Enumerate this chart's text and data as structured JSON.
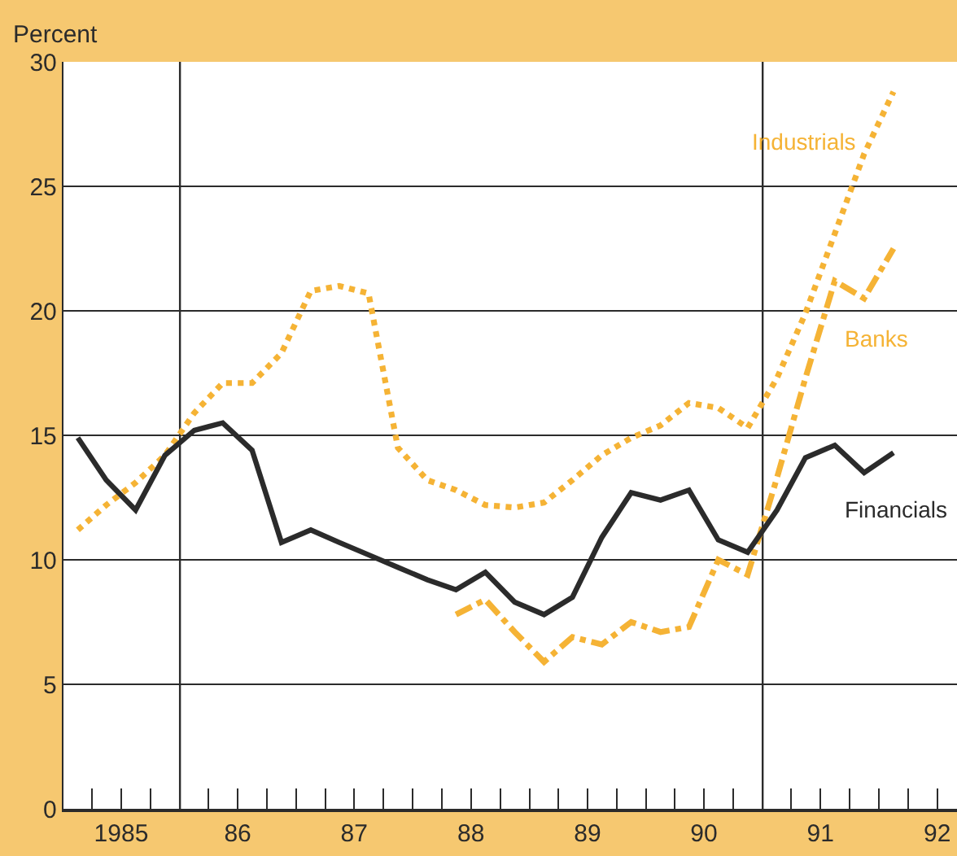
{
  "chart_data": {
    "type": "line",
    "ylabel": "Percent",
    "xlim": [
      "1985-01-01",
      "1992-09-01"
    ],
    "xticks": [
      {
        "value": "1985-01-01",
        "label": null
      },
      {
        "value": "1985-04-01",
        "label": null
      },
      {
        "value": "1985-07-01",
        "label": "1985"
      },
      {
        "value": "1985-10-01",
        "label": null
      },
      {
        "value": "1986-01-01",
        "label": null
      },
      {
        "value": "1986-04-01",
        "label": null
      },
      {
        "value": "1986-07-01",
        "label": "86"
      },
      {
        "value": "1986-10-01",
        "label": null
      },
      {
        "value": "1987-01-01",
        "label": null
      },
      {
        "value": "1987-04-01",
        "label": null
      },
      {
        "value": "1987-07-01",
        "label": "87"
      },
      {
        "value": "1987-10-01",
        "label": null
      },
      {
        "value": "1988-01-01",
        "label": null
      },
      {
        "value": "1988-04-01",
        "label": null
      },
      {
        "value": "1988-07-01",
        "label": "88"
      },
      {
        "value": "1988-10-01",
        "label": null
      },
      {
        "value": "1989-01-01",
        "label": null
      },
      {
        "value": "1989-04-01",
        "label": null
      },
      {
        "value": "1989-07-01",
        "label": "89"
      },
      {
        "value": "1989-10-01",
        "label": null
      },
      {
        "value": "1990-01-01",
        "label": null
      },
      {
        "value": "1990-04-01",
        "label": null
      },
      {
        "value": "1990-07-01",
        "label": "90"
      },
      {
        "value": "1990-10-01",
        "label": null
      },
      {
        "value": "1991-01-01",
        "label": null
      },
      {
        "value": "1991-04-01",
        "label": null
      },
      {
        "value": "1991-07-01",
        "label": "91"
      },
      {
        "value": "1991-10-01",
        "label": null
      },
      {
        "value": "1992-01-01",
        "label": null
      },
      {
        "value": "1992-04-01",
        "label": null
      },
      {
        "value": "1992-07-01",
        "label": "92"
      }
    ],
    "ylim": [
      0,
      30
    ],
    "yticks": [
      0,
      5,
      10,
      15,
      20,
      25,
      30
    ],
    "grid": "y",
    "legend": false,
    "marker": "none",
    "ref_lines": [
      {
        "axis": "x",
        "value": "1986-01-01",
        "color": "#2b2b2b"
      },
      {
        "axis": "x",
        "value": "1991-01-01",
        "color": "#2b2b2b"
      }
    ],
    "series": [
      {
        "name": "Industrials",
        "color": "#f5b335",
        "line_style": "dotted",
        "x": [
          "1985-02-15",
          "1985-05-15",
          "1985-08-15",
          "1985-11-15",
          "1986-02-15",
          "1986-05-15",
          "1986-08-15",
          "1986-11-15",
          "1987-02-15",
          "1987-05-15",
          "1987-08-15",
          "1987-11-15",
          "1988-02-15",
          "1988-05-15",
          "1988-08-15",
          "1988-11-15",
          "1989-02-15",
          "1989-05-15",
          "1989-08-15",
          "1989-11-15",
          "1990-02-15",
          "1990-05-15",
          "1990-08-15",
          "1990-11-15",
          "1991-02-15",
          "1991-05-15",
          "1991-08-15",
          "1991-11-15",
          "1992-02-15"
        ],
        "values": [
          11.2,
          12.2,
          13.1,
          14.2,
          15.9,
          17.1,
          17.1,
          18.3,
          20.8,
          21.0,
          20.7,
          14.5,
          13.2,
          12.8,
          12.2,
          12.1,
          12.3,
          13.2,
          14.2,
          14.9,
          15.4,
          16.3,
          16.1,
          15.3,
          17.3,
          19.9,
          23.1,
          26.3,
          28.8
        ]
      },
      {
        "name": "Banks",
        "color": "#f5b335",
        "line_style": "dashdot",
        "x": [
          "1988-05-15",
          "1988-08-15",
          "1988-11-15",
          "1989-02-15",
          "1989-05-15",
          "1989-08-15",
          "1989-11-15",
          "1990-02-15",
          "1990-05-15",
          "1990-08-15",
          "1990-11-15",
          "1991-02-15",
          "1991-05-15",
          "1991-08-15",
          "1991-11-15",
          "1992-02-15"
        ],
        "values": [
          7.8,
          8.4,
          7.1,
          5.9,
          6.9,
          6.6,
          7.5,
          7.1,
          7.3,
          10.0,
          9.4,
          13.3,
          17.3,
          21.2,
          20.5,
          22.5
        ]
      },
      {
        "name": "Financials",
        "color": "#2b2b2b",
        "line_style": "solid",
        "x": [
          "1985-02-15",
          "1985-05-15",
          "1985-08-15",
          "1985-11-15",
          "1986-02-15",
          "1986-05-15",
          "1986-08-15",
          "1986-11-15",
          "1987-02-15",
          "1987-05-15",
          "1987-08-15",
          "1987-11-15",
          "1988-02-15",
          "1988-05-15",
          "1988-08-15",
          "1988-11-15",
          "1989-02-15",
          "1989-05-15",
          "1989-08-15",
          "1989-11-15",
          "1990-02-15",
          "1990-05-15",
          "1990-08-15",
          "1990-11-15",
          "1991-02-15",
          "1991-05-15",
          "1991-08-15",
          "1991-11-15",
          "1992-02-15"
        ],
        "values": [
          14.9,
          13.2,
          12.0,
          14.2,
          15.2,
          15.5,
          14.4,
          10.7,
          11.2,
          10.7,
          10.2,
          9.7,
          9.2,
          8.8,
          9.5,
          8.3,
          7.8,
          8.5,
          10.9,
          12.7,
          12.4,
          12.8,
          10.8,
          10.3,
          12.0,
          14.1,
          14.6,
          13.5,
          14.3
        ]
      }
    ]
  }
}
